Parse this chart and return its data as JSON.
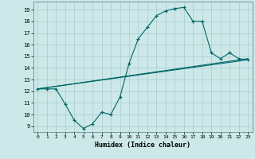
{
  "xlabel": "Humidex (Indice chaleur)",
  "bg_color": "#cce8e8",
  "grid_color": "#aacccc",
  "line_color": "#006666",
  "line1_x": [
    0,
    1,
    2,
    3,
    4,
    5,
    6,
    7,
    8,
    9,
    10,
    11,
    12,
    13,
    14,
    15,
    16,
    17,
    18,
    19,
    20,
    21,
    22,
    23
  ],
  "line1_y": [
    12.2,
    12.2,
    12.2,
    10.9,
    9.5,
    8.8,
    9.2,
    10.2,
    10.0,
    11.5,
    14.4,
    16.5,
    17.5,
    18.5,
    18.9,
    19.1,
    19.2,
    18.0,
    18.0,
    15.3,
    14.8,
    15.3,
    14.8,
    14.7
  ],
  "line2_x": [
    0,
    23
  ],
  "line2_y": [
    12.2,
    14.8
  ],
  "line3_x": [
    0,
    23
  ],
  "line3_y": [
    12.2,
    14.7
  ],
  "xlim": [
    -0.5,
    23.5
  ],
  "ylim": [
    8.5,
    19.7
  ],
  "yticks": [
    9,
    10,
    11,
    12,
    13,
    14,
    15,
    16,
    17,
    18,
    19
  ],
  "xticks": [
    0,
    1,
    2,
    3,
    4,
    5,
    6,
    7,
    8,
    9,
    10,
    11,
    12,
    13,
    14,
    15,
    16,
    17,
    18,
    19,
    20,
    21,
    22,
    23
  ]
}
